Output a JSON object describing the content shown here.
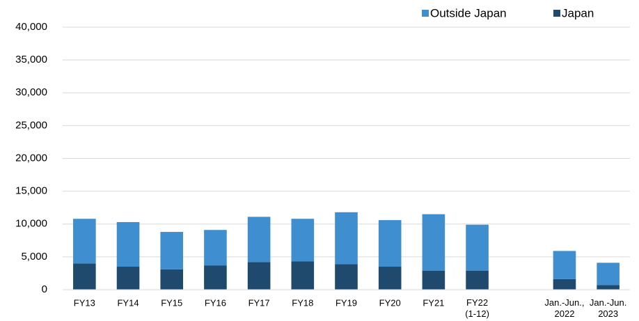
{
  "chart_data": {
    "type": "stacked_bar",
    "categories": [
      "FY13",
      "FY14",
      "FY15",
      "FY16",
      "FY17",
      "FY18",
      "FY19",
      "FY20",
      "FY21",
      [
        "FY22",
        "(1-12)"
      ],
      null,
      [
        "Jan.-Jun.,",
        "2022"
      ],
      [
        "Jan.-Jun.",
        "2023"
      ]
    ],
    "series": [
      {
        "name": "Outside Japan",
        "color": "#3f8ed0",
        "values": [
          6800,
          6800,
          5700,
          5400,
          6900,
          6500,
          7900,
          7100,
          8600,
          7000,
          null,
          4300,
          3400
        ]
      },
      {
        "name": "Japan",
        "color": "#1f4a6e",
        "values": [
          4000,
          3500,
          3100,
          3700,
          4200,
          4300,
          3900,
          3500,
          2900,
          2900,
          null,
          1600,
          700
        ]
      }
    ],
    "ylim": [
      0,
      40000
    ],
    "yticks": [
      0,
      {
        "value": 5000,
        "label": "5,000"
      },
      {
        "value": 10000,
        "label": "10,000"
      },
      {
        "value": 15000,
        "label": "15,000"
      },
      {
        "value": 20000,
        "label": "20,000"
      },
      {
        "value": 25000,
        "label": "25,000"
      },
      {
        "value": 30000,
        "label": "30,000"
      },
      {
        "value": 35000,
        "label": "35,000"
      },
      {
        "value": 40000,
        "label": "40,000"
      }
    ],
    "grid": true,
    "legend": "top-right"
  }
}
